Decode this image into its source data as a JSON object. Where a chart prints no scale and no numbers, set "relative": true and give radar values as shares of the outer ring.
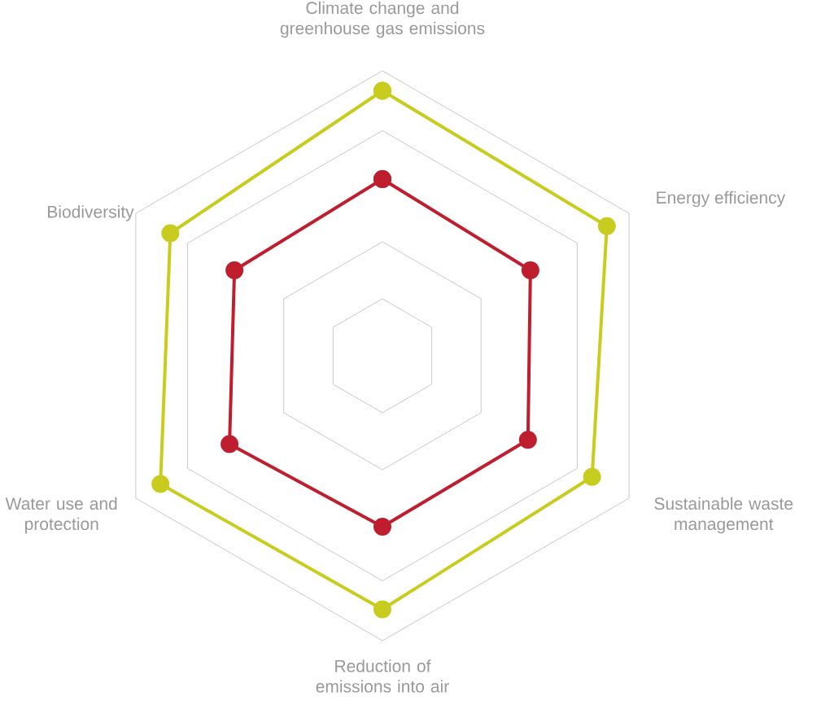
{
  "chart_data": {
    "type": "radar",
    "relative": true,
    "marker": "circle",
    "categories": [
      "Climate change and greenhouse gas emissions",
      "Energy efficiency",
      "Sustainable waste management",
      "Reduction of emissions into air",
      "Water use and protection",
      "Biodiversity"
    ],
    "series": [
      {
        "color": "#c8cc1e",
        "values": [
          0.93,
          0.91,
          0.85,
          0.89,
          0.9,
          0.86
        ]
      },
      {
        "color": "#be1e2d",
        "values": [
          0.62,
          0.6,
          0.59,
          0.6,
          0.62,
          0.6
        ]
      }
    ]
  }
}
